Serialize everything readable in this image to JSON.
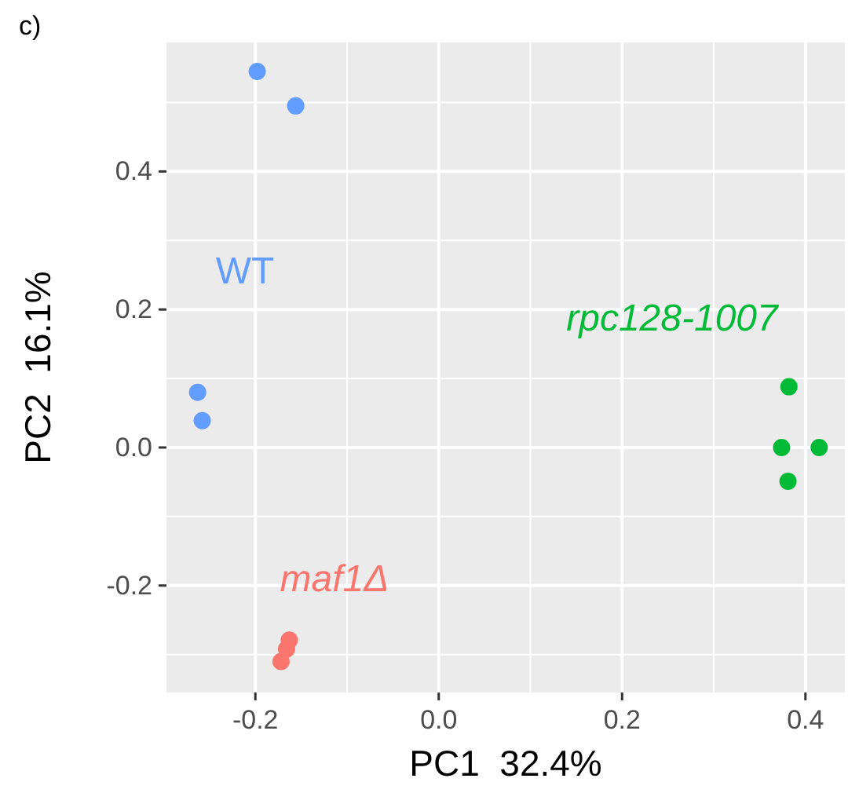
{
  "chart_data": {
    "type": "scatter",
    "title": "c)",
    "xlabel": "PC1  32.4%",
    "ylabel": "PC2  16.1%",
    "xlim": [
      -0.297,
      0.443
    ],
    "ylim": [
      -0.355,
      0.587
    ],
    "xticks": [
      {
        "value": -0.2,
        "label": "-0.2"
      },
      {
        "value": 0,
        "label": "0.0"
      },
      {
        "value": 0.2,
        "label": "0.2"
      },
      {
        "value": 0.4,
        "label": "0.4"
      }
    ],
    "yticks": [
      {
        "value": -0.2,
        "label": "-0.2"
      },
      {
        "value": 0,
        "label": "0.0"
      },
      {
        "value": 0.2,
        "label": "0.2"
      },
      {
        "value": 0.4,
        "label": "0.4"
      }
    ],
    "grid": true,
    "marker": "circle",
    "legend": false,
    "series": [
      {
        "name": "WT",
        "color": "#619cff",
        "x": [
          -0.198,
          -0.156,
          -0.263,
          -0.258
        ],
        "values": [
          0.545,
          0.495,
          0.08,
          0.039
        ]
      },
      {
        "name": "maf1Δ",
        "color": "#f8766d",
        "x": [
          -0.163,
          -0.166,
          -0.172
        ],
        "values": [
          -0.279,
          -0.292,
          -0.31
        ]
      },
      {
        "name": "rpc128-1007",
        "color": "#00ba38",
        "x": [
          0.382,
          0.374,
          0.415,
          0.381
        ],
        "values": [
          0.088,
          0.0,
          0.0,
          -0.049
        ]
      }
    ]
  }
}
